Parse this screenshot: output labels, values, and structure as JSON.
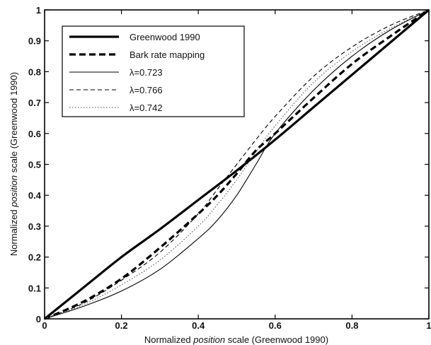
{
  "chart_data": {
    "type": "line",
    "title": "",
    "xlabel_parts": [
      "Normalized",
      "position",
      "scale (Greenwood 1990)"
    ],
    "ylabel_parts": [
      "Normalized",
      "position",
      "scale (Greenwood 1990)"
    ],
    "xlim": [
      0,
      1
    ],
    "ylim": [
      0,
      1
    ],
    "x_ticks": [
      {
        "value": 0,
        "label": "0"
      },
      {
        "value": 0.2,
        "label": "0.2"
      },
      {
        "value": 0.4,
        "label": "0.4"
      },
      {
        "value": 0.6,
        "label": "0.6"
      },
      {
        "value": 0.8,
        "label": "0.8"
      },
      {
        "value": 1,
        "label": "1"
      }
    ],
    "y_ticks": [
      {
        "value": 0,
        "label": "0"
      },
      {
        "value": 0.1,
        "label": "0.1"
      },
      {
        "value": 0.2,
        "label": "0.2"
      },
      {
        "value": 0.3,
        "label": "0.3"
      },
      {
        "value": 0.4,
        "label": "0.4"
      },
      {
        "value": 0.5,
        "label": "0.5"
      },
      {
        "value": 0.6,
        "label": "0.6"
      },
      {
        "value": 0.7,
        "label": "0.7"
      },
      {
        "value": 0.8,
        "label": "0.8"
      },
      {
        "value": 0.9,
        "label": "0.9"
      },
      {
        "value": 1,
        "label": "1"
      }
    ],
    "grid": false,
    "legend_position": "top-left",
    "series": [
      {
        "name": "Greenwood 1990",
        "style": "solid-thick",
        "x": [
          0,
          0.1,
          0.2,
          0.3,
          0.4,
          0.5,
          0.6,
          0.7,
          0.8,
          0.9,
          1.0
        ],
        "y": [
          0,
          0.1,
          0.2,
          0.29,
          0.385,
          0.48,
          0.58,
          0.685,
          0.79,
          0.895,
          1.0
        ]
      },
      {
        "name": "Bark rate mapping",
        "style": "dashed-thick",
        "x": [
          0,
          0.1,
          0.2,
          0.3,
          0.4,
          0.45,
          0.5,
          0.55,
          0.6,
          0.7,
          0.8,
          0.9,
          1.0
        ],
        "y": [
          0,
          0.055,
          0.13,
          0.23,
          0.34,
          0.4,
          0.47,
          0.545,
          0.6,
          0.715,
          0.825,
          0.915,
          1.0
        ]
      },
      {
        "name": "λ=0.723",
        "style": "solid-thin",
        "x": [
          0,
          0.1,
          0.2,
          0.3,
          0.4,
          0.45,
          0.5,
          0.55,
          0.6,
          0.7,
          0.8,
          0.9,
          1.0
        ],
        "y": [
          0,
          0.04,
          0.09,
          0.16,
          0.26,
          0.32,
          0.4,
          0.5,
          0.6,
          0.74,
          0.85,
          0.935,
          1.0
        ]
      },
      {
        "name": "λ=0.766",
        "style": "dashed-thin",
        "x": [
          0,
          0.1,
          0.2,
          0.3,
          0.4,
          0.45,
          0.5,
          0.55,
          0.6,
          0.7,
          0.8,
          0.9,
          1.0
        ],
        "y": [
          0,
          0.05,
          0.125,
          0.215,
          0.34,
          0.42,
          0.5,
          0.58,
          0.655,
          0.785,
          0.88,
          0.95,
          1.0
        ]
      },
      {
        "name": "λ=0.742",
        "style": "dotted-thin",
        "x": [
          0,
          0.1,
          0.2,
          0.3,
          0.4,
          0.45,
          0.5,
          0.55,
          0.6,
          0.7,
          0.8,
          0.9,
          1.0
        ],
        "y": [
          0,
          0.045,
          0.11,
          0.19,
          0.3,
          0.37,
          0.45,
          0.54,
          0.625,
          0.765,
          0.865,
          0.94,
          1.0
        ]
      }
    ]
  }
}
